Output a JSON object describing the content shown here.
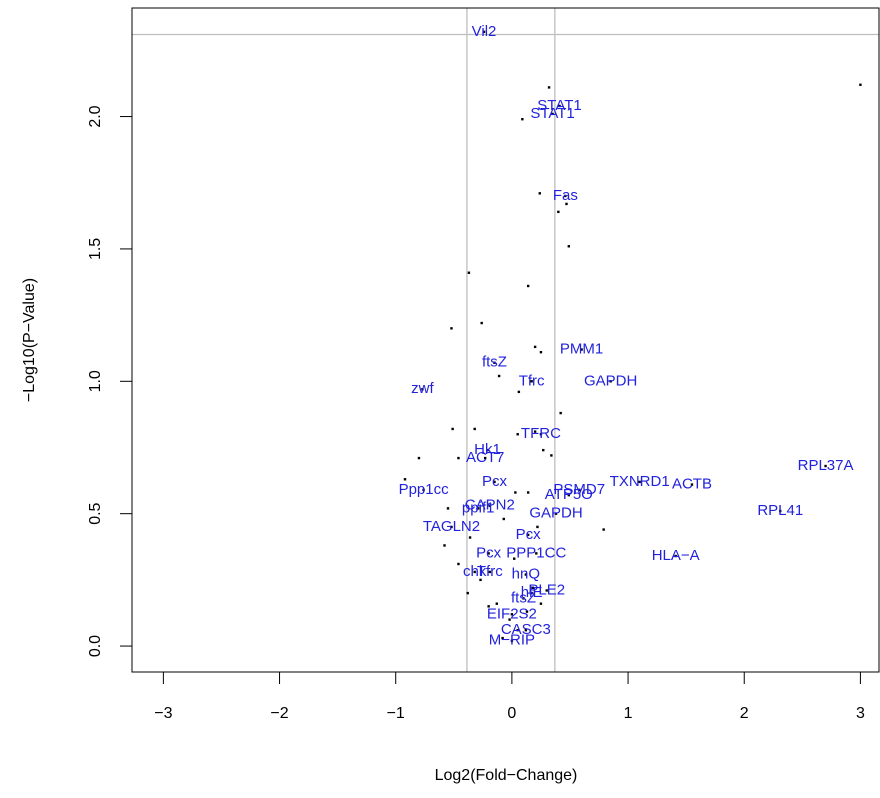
{
  "chart_data": {
    "type": "scatter",
    "x_label": "Log2(Fold−Change)",
    "y_label": "−Log10(P−Value)",
    "xlim": [
      -3.27,
      3.16
    ],
    "ylim": [
      -0.098,
      2.41
    ],
    "xticks": [
      {
        "value": -3,
        "label": "−3"
      },
      {
        "value": -2,
        "label": "−2"
      },
      {
        "value": -1,
        "label": "−1"
      },
      0,
      1,
      2,
      3
    ],
    "yticks": [
      {
        "value": 0,
        "label": "0.0"
      },
      0.5,
      {
        "value": 1,
        "label": "1.0"
      },
      1.5,
      {
        "value": 2,
        "label": "2.0"
      }
    ],
    "vlines": [
      -0.387,
      0.37
    ],
    "hlines": [
      2.31
    ],
    "point_color": "#000000",
    "label_color": "#2222dd",
    "line_color": "#bebebe",
    "x": [
      -0.24,
      0.41,
      0.35,
      0.46,
      0.6,
      -0.15,
      0.17,
      0.85,
      -0.77,
      0.25,
      -0.21,
      -0.23,
      -0.15,
      1.1,
      1.55,
      2.7,
      -0.76,
      0.58,
      0.49,
      -0.19,
      -0.29,
      2.31,
      0.38,
      -0.52,
      0.14,
      -0.2,
      0.21,
      1.41,
      -0.19,
      -0.32,
      0.12,
      0.3,
      0.17,
      0.1,
      0.0,
      0.12,
      0.0,
      0.32,
      3.0,
      0.09,
      0.24,
      0.4,
      0.47,
      0.49,
      -0.37,
      0.14,
      -0.52,
      -0.26,
      0.2,
      0.25,
      -0.11,
      0.06,
      0.42,
      -0.51,
      -0.32,
      0.05,
      0.2,
      0.27,
      0.34,
      -0.8,
      -0.46,
      -0.92,
      0.03,
      0.14,
      0.79,
      -0.55,
      -0.07,
      0.22,
      -0.58,
      -0.36,
      0.02,
      -0.46,
      -0.27,
      -0.38,
      -0.2,
      -0.02,
      0.13,
      0.25,
      -0.08,
      0.05,
      -0.13,
      0.18
    ],
    "y": [
      2.32,
      2.04,
      2.01,
      1.7,
      1.12,
      1.07,
      1.0,
      1.0,
      0.97,
      0.8,
      0.74,
      0.71,
      0.62,
      0.62,
      0.61,
      0.68,
      0.59,
      0.59,
      0.57,
      0.53,
      0.52,
      0.51,
      0.5,
      0.45,
      0.42,
      0.35,
      0.35,
      0.34,
      0.28,
      0.28,
      0.27,
      0.21,
      0.2,
      0.18,
      0.12,
      0.06,
      0.02,
      2.11,
      2.12,
      1.99,
      1.71,
      1.64,
      1.67,
      1.51,
      1.41,
      1.36,
      1.2,
      1.22,
      1.13,
      1.11,
      1.02,
      0.96,
      0.88,
      0.82,
      0.82,
      0.8,
      0.81,
      0.74,
      0.72,
      0.71,
      0.71,
      0.63,
      0.58,
      0.58,
      0.44,
      0.52,
      0.48,
      0.45,
      0.38,
      0.41,
      0.33,
      0.31,
      0.25,
      0.2,
      0.15,
      0.1,
      0.13,
      0.16,
      0.03,
      0.06,
      0.16,
      0.22
    ],
    "labels": [
      "Vil2",
      "STAT1",
      "STAT1",
      "Fas",
      "PMM1",
      "ftsZ",
      "Tfrc",
      "GAPDH",
      "zwf",
      "TFRC",
      "Hk1",
      "ACT7",
      "Pcx",
      "TXNRD1",
      "ACTB",
      "RPL37A",
      "Ppp1cc",
      "PSMD7",
      "ATP5O",
      "CAPN2",
      "ppif1",
      "RPL41",
      "GAPDH",
      "TAGLN2",
      "Pcx",
      "Pcx",
      "PPP1CC",
      "HLA−A",
      "Tfrc",
      "chk",
      "hnQ",
      "PLE2",
      "hlE",
      "ftsZ",
      "EIF2S2",
      "CASC3",
      "M−RIP",
      null,
      null,
      null,
      null,
      null,
      null,
      null,
      null,
      null,
      null,
      null,
      null,
      null,
      null,
      null,
      null,
      null,
      null,
      null,
      null,
      null,
      null,
      null,
      null,
      null,
      null,
      null,
      null,
      null,
      null,
      null,
      null,
      null,
      null,
      null,
      null,
      null,
      null,
      null,
      null,
      null,
      null,
      null,
      null,
      null
    ]
  }
}
